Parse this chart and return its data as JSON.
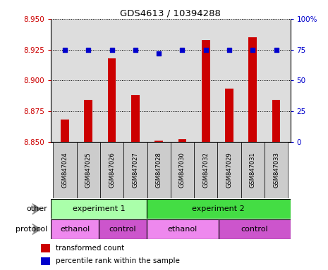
{
  "title": "GDS4613 / 10394288",
  "samples": [
    "GSM847024",
    "GSM847025",
    "GSM847026",
    "GSM847027",
    "GSM847028",
    "GSM847030",
    "GSM847032",
    "GSM847029",
    "GSM847031",
    "GSM847033"
  ],
  "bar_values": [
    8.868,
    8.884,
    8.918,
    8.888,
    8.851,
    8.852,
    8.933,
    8.893,
    8.935,
    8.884
  ],
  "dot_values": [
    75,
    75,
    75,
    75,
    72,
    75,
    75,
    75,
    75,
    75
  ],
  "ylim_left": [
    8.85,
    8.95
  ],
  "ylim_right": [
    0,
    100
  ],
  "yticks_left": [
    8.85,
    8.875,
    8.9,
    8.925,
    8.95
  ],
  "yticks_right": [
    0,
    25,
    50,
    75,
    100
  ],
  "bar_color": "#cc0000",
  "dot_color": "#0000cc",
  "bar_bottom": 8.85,
  "exp1_color": "#aaffaa",
  "exp2_color": "#44dd44",
  "ethanol_color": "#ee88ee",
  "control_color": "#cc55cc",
  "experiment1_label": "experiment 1",
  "experiment2_label": "experiment 2",
  "other_label": "other",
  "protocol_label": "protocol",
  "ethanol_label": "ethanol",
  "control_label": "control",
  "legend_bar": "transformed count",
  "legend_dot": "percentile rank within the sample",
  "ylabel_left_color": "#cc0000",
  "ylabel_right_color": "#0000cc",
  "ax_bg_color": "#dddddd",
  "fig_bg_color": "#ffffff"
}
